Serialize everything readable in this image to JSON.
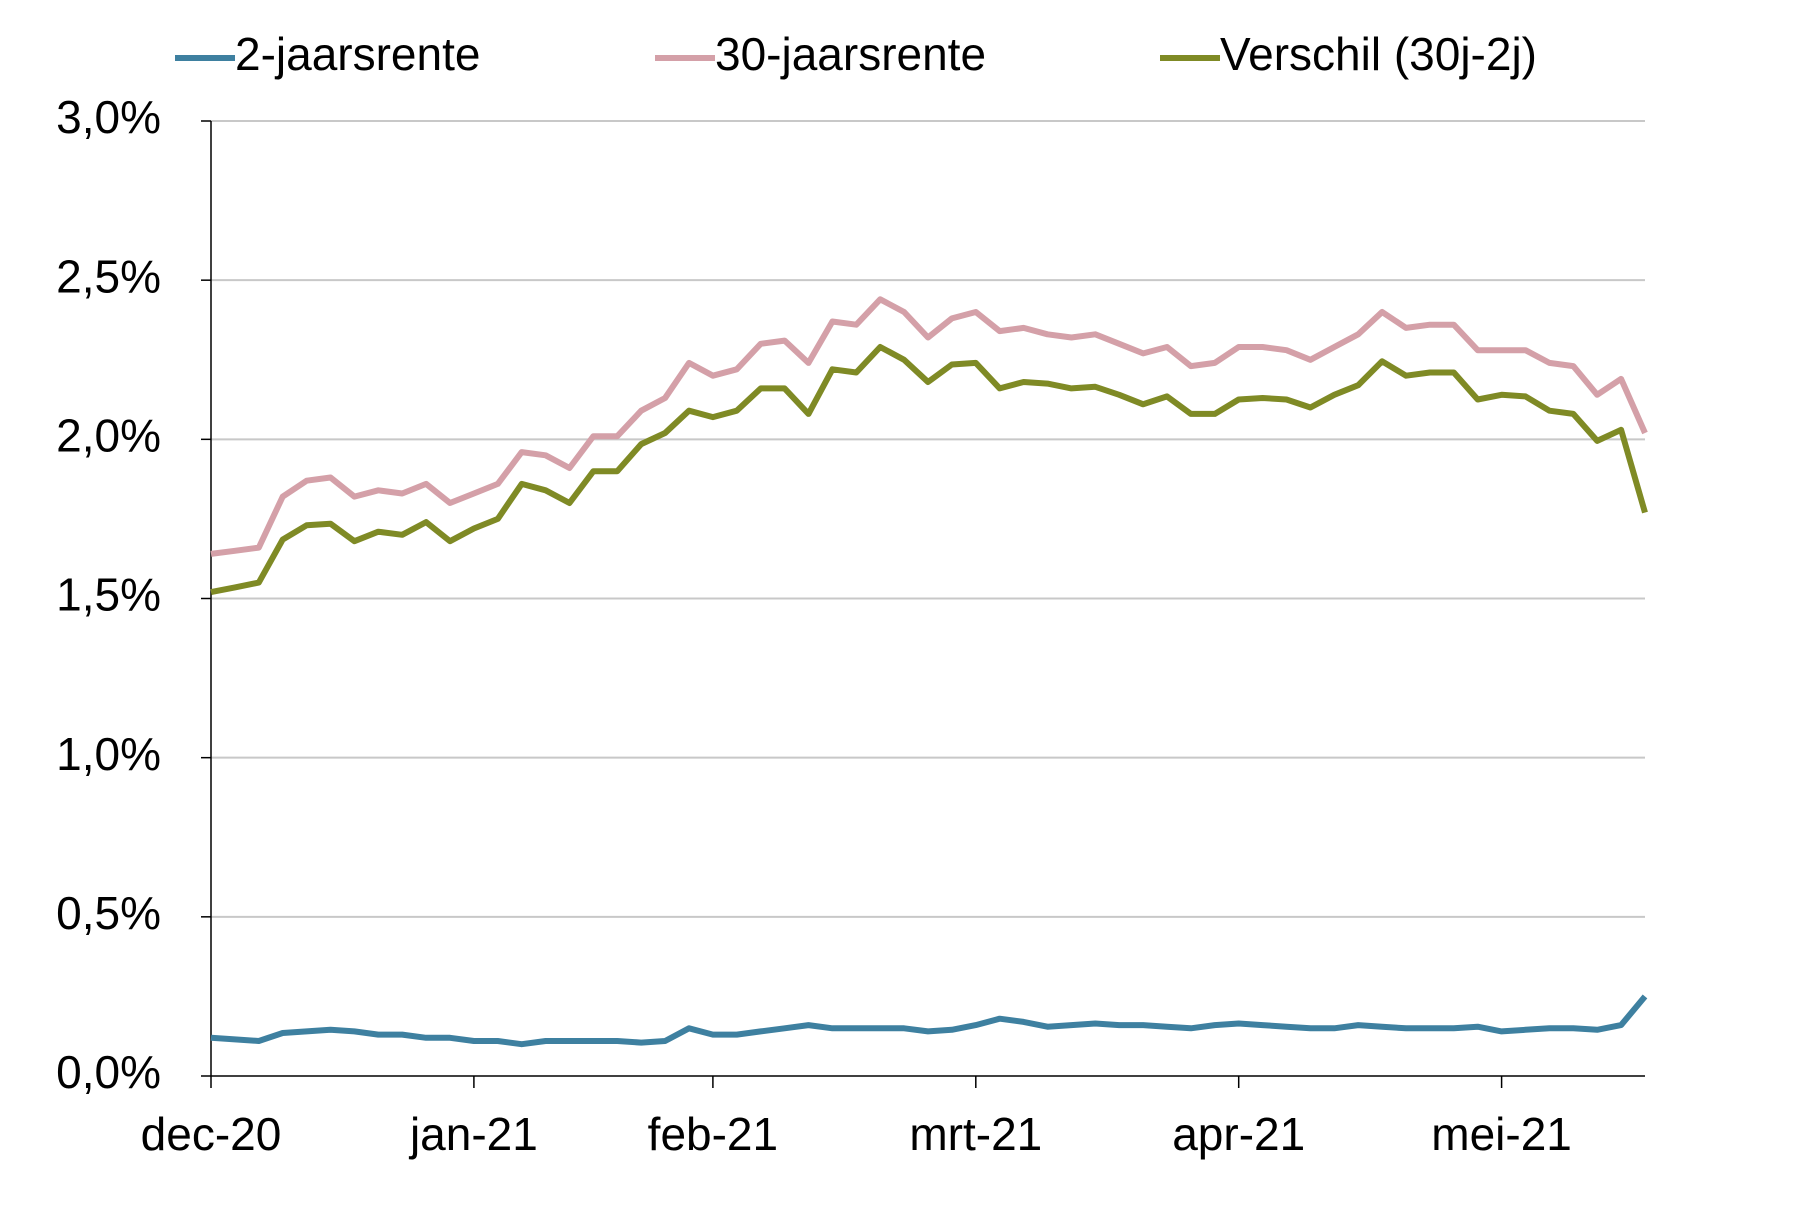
{
  "chart_data": {
    "type": "line",
    "categories": [
      "dec-20",
      null,
      null,
      null,
      null,
      null,
      null,
      null,
      null,
      null,
      null,
      "jan-21",
      null,
      null,
      null,
      null,
      null,
      null,
      null,
      null,
      null,
      "feb-21",
      null,
      null,
      null,
      null,
      null,
      null,
      null,
      null,
      null,
      null,
      "mrt-21",
      null,
      null,
      null,
      null,
      null,
      null,
      null,
      null,
      null,
      null,
      "apr-21",
      null,
      null,
      null,
      null,
      null,
      null,
      null,
      null,
      null,
      null,
      "mei-21",
      null,
      null,
      null,
      null,
      null,
      null
    ],
    "series": [
      {
        "name": "2-jaarsrente",
        "color": "#3e80a0",
        "values": [
          0.12,
          0.115,
          0.11,
          0.135,
          0.14,
          0.145,
          0.14,
          0.13,
          0.13,
          0.12,
          0.12,
          0.11,
          0.11,
          0.1,
          0.11,
          0.11,
          0.11,
          0.11,
          0.105,
          0.11,
          0.15,
          0.13,
          0.13,
          0.14,
          0.15,
          0.16,
          0.15,
          0.15,
          0.15,
          0.15,
          0.14,
          0.145,
          0.16,
          0.18,
          0.17,
          0.155,
          0.16,
          0.165,
          0.16,
          0.16,
          0.155,
          0.15,
          0.16,
          0.165,
          0.16,
          0.155,
          0.15,
          0.15,
          0.16,
          0.155,
          0.15,
          0.15,
          0.15,
          0.155,
          0.14,
          0.145,
          0.15,
          0.15,
          0.145,
          0.16,
          0.25
        ]
      },
      {
        "name": "30-jaarsrente",
        "color": "#d4a0a8",
        "values": [
          1.64,
          1.65,
          1.66,
          1.82,
          1.87,
          1.88,
          1.82,
          1.84,
          1.83,
          1.86,
          1.8,
          1.83,
          1.86,
          1.96,
          1.95,
          1.91,
          2.01,
          2.01,
          2.09,
          2.13,
          2.24,
          2.2,
          2.22,
          2.3,
          2.31,
          2.24,
          2.37,
          2.36,
          2.44,
          2.4,
          2.32,
          2.38,
          2.4,
          2.34,
          2.35,
          2.33,
          2.32,
          2.33,
          2.3,
          2.27,
          2.29,
          2.23,
          2.24,
          2.29,
          2.29,
          2.28,
          2.25,
          2.29,
          2.33,
          2.4,
          2.35,
          2.36,
          2.36,
          2.28,
          2.28,
          2.28,
          2.24,
          2.23,
          2.14,
          2.19,
          2.02
        ]
      },
      {
        "name": "Verschil (30j-2j)",
        "color": "#7f8a25",
        "values": [
          1.52,
          1.535,
          1.55,
          1.685,
          1.73,
          1.735,
          1.68,
          1.71,
          1.7,
          1.74,
          1.68,
          1.72,
          1.75,
          1.86,
          1.84,
          1.8,
          1.9,
          1.9,
          1.985,
          2.02,
          2.09,
          2.07,
          2.09,
          2.16,
          2.16,
          2.08,
          2.22,
          2.21,
          2.29,
          2.25,
          2.18,
          2.235,
          2.24,
          2.16,
          2.18,
          2.175,
          2.16,
          2.165,
          2.14,
          2.11,
          2.135,
          2.08,
          2.08,
          2.125,
          2.13,
          2.125,
          2.1,
          2.14,
          2.17,
          2.245,
          2.2,
          2.21,
          2.21,
          2.125,
          2.14,
          2.135,
          2.09,
          2.08,
          1.995,
          2.03,
          1.77
        ]
      }
    ],
    "ylim": [
      0,
      3
    ],
    "yticks": [
      {
        "value": 0,
        "label": "0,0%"
      },
      {
        "value": 0.5,
        "label": "0,5%"
      },
      {
        "value": 1,
        "label": "1,0%"
      },
      {
        "value": 1.5,
        "label": "1,5%"
      },
      {
        "value": 2,
        "label": "2,0%"
      },
      {
        "value": 2.5,
        "label": "2,5%"
      },
      {
        "value": 3,
        "label": "3,0%"
      }
    ],
    "grid": true,
    "legend": "top"
  }
}
